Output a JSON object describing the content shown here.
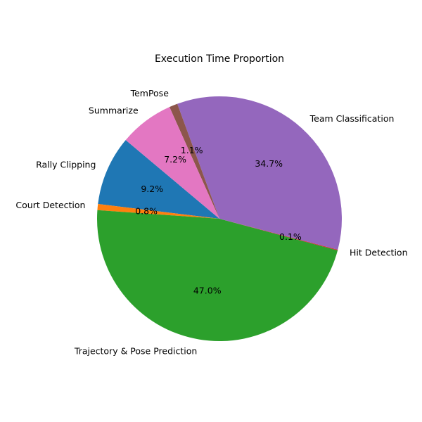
{
  "chart_data": {
    "type": "pie",
    "title": "Execution Time Proportion",
    "slices": [
      {
        "label": "Rally Clipping",
        "value": 9.2,
        "pct_label": "9.2%",
        "color": "#1f77b4"
      },
      {
        "label": "Court Detection",
        "value": 0.8,
        "pct_label": "0.8%",
        "color": "#ff7f0e"
      },
      {
        "label": "Trajectory & Pose Prediction",
        "value": 47.0,
        "pct_label": "47.0%",
        "color": "#2ca02c"
      },
      {
        "label": "Hit Detection",
        "value": 0.1,
        "pct_label": "0.1%",
        "color": "#d62728"
      },
      {
        "label": "Team Classification",
        "value": 34.7,
        "pct_label": "34.7%",
        "color": "#9467bd"
      },
      {
        "label": "TemPose",
        "value": 1.1,
        "pct_label": "1.1%",
        "color": "#8c564b"
      },
      {
        "label": "Summarize",
        "value": 7.2,
        "pct_label": "7.2%",
        "color": "#e377c2"
      }
    ],
    "start_angle_deg": 140,
    "direction": "counterclockwise",
    "legend": "none"
  }
}
